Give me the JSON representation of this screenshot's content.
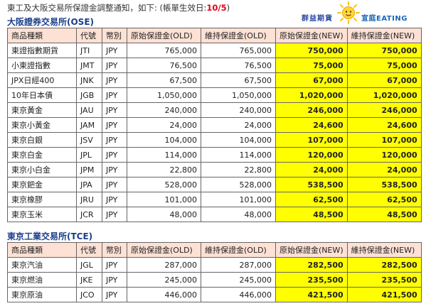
{
  "notice": {
    "text": "東工及大阪交易所保證金調整通知，如下: (帳單生效日:",
    "date": "10/5",
    "close": ")"
  },
  "logo": {
    "left_text": "群益期貨",
    "right_text": "宣庭EATING",
    "icon": "sun-icon",
    "colors": {
      "sun": "#f6c21b",
      "left": "#2b4aa0",
      "right": "#1a67b8"
    }
  },
  "colors": {
    "header_bg": "#fde1d5",
    "new_bg": "#ffff00",
    "title": "#1a3e8a",
    "highlight": "#e0001a"
  },
  "headers": [
    "商品種類",
    "代號",
    "幣別",
    "原始保證金(OLD)",
    "維持保證金(OLD)",
    "原始保證金(NEW)",
    "維持保證金(NEW)"
  ],
  "ose": {
    "title": "大阪證券交易所(OSE)",
    "rows": [
      [
        "東證指數期貨",
        "JTI",
        "JPY",
        "765,000",
        "765,000",
        "750,000",
        "750,000"
      ],
      [
        "小東證指數",
        "JMT",
        "JPY",
        "76,500",
        "76,500",
        "75,000",
        "75,000"
      ],
      [
        "JPX日經400",
        "JNK",
        "JPY",
        "67,500",
        "67,500",
        "67,000",
        "67,000"
      ],
      [
        "10年日本債",
        "JGB",
        "JPY",
        "1,050,000",
        "1,050,000",
        "1,020,000",
        "1,020,000"
      ],
      [
        "東京黃金",
        "JAU",
        "JPY",
        "240,000",
        "240,000",
        "246,000",
        "246,000"
      ],
      [
        "東京小黃金",
        "JAM",
        "JPY",
        "24,000",
        "24,000",
        "24,600",
        "24,600"
      ],
      [
        "東京白銀",
        "JSV",
        "JPY",
        "104,000",
        "104,000",
        "107,000",
        "107,000"
      ],
      [
        "東京白金",
        "JPL",
        "JPY",
        "114,000",
        "114,000",
        "120,000",
        "120,000"
      ],
      [
        "東京小白金",
        "JPM",
        "JPY",
        "22,800",
        "22,800",
        "24,000",
        "24,000"
      ],
      [
        "東京鈀金",
        "JPA",
        "JPY",
        "528,000",
        "528,000",
        "538,500",
        "538,500"
      ],
      [
        "東京橡膠",
        "JRU",
        "JPY",
        "101,000",
        "101,000",
        "62,500",
        "62,500"
      ],
      [
        "東京玉米",
        "JCR",
        "JPY",
        "48,000",
        "48,000",
        "48,500",
        "48,500"
      ]
    ]
  },
  "tce": {
    "title": "東京工業交易所(TCE)",
    "rows": [
      [
        "東京汽油",
        "JGL",
        "JPY",
        "287,000",
        "287,000",
        "282,500",
        "282,500"
      ],
      [
        "東京燃油",
        "JKE",
        "JPY",
        "245,000",
        "245,000",
        "235,500",
        "235,500"
      ],
      [
        "東京原油",
        "JCO",
        "JPY",
        "446,000",
        "446,000",
        "421,500",
        "421,500"
      ]
    ]
  }
}
